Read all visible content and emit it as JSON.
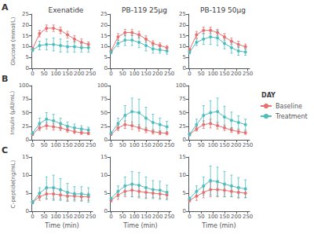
{
  "chart_data": [
    {
      "type": "line",
      "title": "Exenatide",
      "annotation": "A",
      "ylabel": "Glucose (mmol/L)",
      "x": [
        0,
        30,
        60,
        90,
        120,
        150,
        180,
        210,
        240
      ],
      "series": [
        {
          "name": "Baseline",
          "color": "#E87070",
          "marker": "circle",
          "values": [
            9.0,
            16.0,
            18.5,
            18.5,
            17.5,
            15.5,
            13.5,
            12.0,
            11.0
          ],
          "errors": [
            0.8,
            1.5,
            1.5,
            1.5,
            1.5,
            1.5,
            1.5,
            1.5,
            1.2
          ]
        },
        {
          "name": "Treatment",
          "color": "#4DBDBD",
          "marker": "circle",
          "values": [
            8.5,
            10.5,
            11.0,
            11.0,
            10.5,
            10.0,
            10.0,
            9.5,
            9.5
          ],
          "errors": [
            0.8,
            2.0,
            2.5,
            3.0,
            3.0,
            2.5,
            2.5,
            2.0,
            2.0
          ]
        }
      ],
      "xlim": [
        -5,
        258
      ],
      "xticks": [
        0,
        50,
        100,
        150,
        200,
        250
      ],
      "ylim": [
        0,
        25
      ],
      "yticks": [
        0,
        5,
        10,
        15,
        20,
        25
      ],
      "grid": false,
      "legend": "right",
      "legend_title": "DAY"
    },
    {
      "type": "line",
      "title": "PB-119 25μg",
      "x": [
        0,
        30,
        60,
        90,
        120,
        150,
        180,
        210,
        240
      ],
      "series": [
        {
          "name": "Baseline",
          "color": "#E87070",
          "marker": "circle",
          "values": [
            8.0,
            14.5,
            16.5,
            16.5,
            15.5,
            13.5,
            11.5,
            10.5,
            9.5
          ],
          "errors": [
            0.8,
            1.5,
            1.5,
            1.5,
            1.5,
            1.5,
            1.2,
            1.2,
            1.0
          ]
        },
        {
          "name": "Treatment",
          "color": "#4DBDBD",
          "marker": "circle",
          "values": [
            7.5,
            11.5,
            13.0,
            13.0,
            12.0,
            10.5,
            9.0,
            8.5,
            8.0
          ],
          "errors": [
            0.8,
            1.5,
            2.5,
            2.5,
            2.5,
            2.5,
            2.0,
            1.5,
            1.5
          ]
        }
      ],
      "xlim": [
        -5,
        258
      ],
      "xticks": [
        0,
        50,
        100,
        150,
        200,
        250
      ],
      "ylim": [
        0,
        25
      ],
      "yticks": [
        0,
        5,
        10,
        15,
        20,
        25
      ],
      "grid": false
    },
    {
      "type": "line",
      "title": "PB-119 50μg",
      "x": [
        0,
        30,
        60,
        90,
        120,
        150,
        180,
        210,
        240
      ],
      "series": [
        {
          "name": "Baseline",
          "color": "#E87070",
          "marker": "circle",
          "values": [
            8.5,
            15.5,
            17.5,
            17.5,
            16.5,
            14.5,
            12.5,
            11.0,
            10.0
          ],
          "errors": [
            0.8,
            1.5,
            1.5,
            1.5,
            1.5,
            1.5,
            1.5,
            1.5,
            1.2
          ]
        },
        {
          "name": "Treatment",
          "color": "#4DBDBD",
          "marker": "circle",
          "values": [
            7.5,
            12.0,
            13.5,
            14.5,
            14.0,
            11.5,
            9.5,
            8.0,
            7.5
          ],
          "errors": [
            0.8,
            1.5,
            2.5,
            3.5,
            3.5,
            2.5,
            2.5,
            2.0,
            1.5
          ]
        }
      ],
      "xlim": [
        -5,
        258
      ],
      "xticks": [
        0,
        50,
        100,
        150,
        200,
        250
      ],
      "ylim": [
        0,
        25
      ],
      "yticks": [
        0,
        5,
        10,
        15,
        20,
        25
      ],
      "grid": false
    },
    {
      "type": "line",
      "annotation": "B",
      "ylabel": "Insulin (μIU/mL)",
      "x": [
        0,
        30,
        60,
        90,
        120,
        150,
        180,
        210,
        240
      ],
      "series": [
        {
          "name": "Baseline",
          "color": "#E87070",
          "marker": "circle",
          "values": [
            10.0,
            22.0,
            26.0,
            24.0,
            22.0,
            18.0,
            15.0,
            13.0,
            12.0
          ],
          "errors": [
            2.0,
            5.0,
            6.0,
            6.0,
            5.0,
            4.0,
            3.5,
            3.0,
            2.5
          ]
        },
        {
          "name": "Treatment",
          "color": "#4DBDBD",
          "marker": "circle",
          "values": [
            12.0,
            30.0,
            38.0,
            35.0,
            30.0,
            25.0,
            22.0,
            20.0,
            18.0
          ],
          "errors": [
            3.0,
            10.0,
            12.0,
            12.0,
            10.0,
            8.0,
            7.0,
            6.0,
            5.0
          ]
        }
      ],
      "xlim": [
        -5,
        258
      ],
      "xticks": [
        0,
        50,
        100,
        150,
        200,
        250
      ],
      "ylim": [
        0,
        100
      ],
      "yticks": [
        0,
        25,
        50,
        75,
        100
      ],
      "grid": false
    },
    {
      "type": "line",
      "x": [
        0,
        30,
        60,
        90,
        120,
        150,
        180,
        210,
        240
      ],
      "series": [
        {
          "name": "Baseline",
          "color": "#E87070",
          "marker": "circle",
          "values": [
            10.0,
            22.0,
            28.0,
            26.0,
            22.0,
            18.0,
            15.0,
            13.0,
            12.0
          ],
          "errors": [
            2.0,
            5.0,
            7.0,
            7.0,
            6.0,
            5.0,
            4.0,
            3.5,
            3.0
          ]
        },
        {
          "name": "Treatment",
          "color": "#4DBDBD",
          "marker": "circle",
          "values": [
            12.0,
            30.0,
            45.0,
            52.0,
            50.0,
            40.0,
            32.0,
            28.0,
            24.0
          ],
          "errors": [
            3.0,
            10.0,
            18.0,
            25.0,
            25.0,
            20.0,
            15.0,
            12.0,
            10.0
          ]
        }
      ],
      "xlim": [
        -5,
        258
      ],
      "xticks": [
        0,
        50,
        100,
        150,
        200,
        250
      ],
      "ylim": [
        0,
        100
      ],
      "yticks": [
        0,
        25,
        50,
        75,
        100
      ],
      "grid": false
    },
    {
      "type": "line",
      "x": [
        0,
        30,
        60,
        90,
        120,
        150,
        180,
        210,
        240
      ],
      "series": [
        {
          "name": "Baseline",
          "color": "#E87070",
          "marker": "circle",
          "values": [
            10.0,
            20.0,
            28.0,
            30.0,
            26.0,
            22.0,
            18.0,
            15.0,
            13.0
          ],
          "errors": [
            2.0,
            4.0,
            7.0,
            8.0,
            6.0,
            5.0,
            4.5,
            4.0,
            3.0
          ]
        },
        {
          "name": "Treatment",
          "color": "#4DBDBD",
          "marker": "circle",
          "values": [
            10.0,
            28.0,
            45.0,
            50.0,
            52.0,
            42.0,
            36.0,
            32.0,
            28.0
          ],
          "errors": [
            3.0,
            10.0,
            18.0,
            22.0,
            25.0,
            20.0,
            15.0,
            12.0,
            10.0
          ]
        }
      ],
      "xlim": [
        -5,
        258
      ],
      "xticks": [
        0,
        50,
        100,
        150,
        200,
        250
      ],
      "ylim": [
        0,
        100
      ],
      "yticks": [
        0,
        25,
        50,
        75,
        100
      ],
      "grid": false
    },
    {
      "type": "line",
      "annotation": "C",
      "ylabel": "C-peptide(ng/mL)",
      "xlabel": "Time (min)",
      "x": [
        0,
        30,
        60,
        90,
        120,
        150,
        180,
        210,
        240
      ],
      "series": [
        {
          "name": "Baseline",
          "color": "#E87070",
          "marker": "circle",
          "values": [
            2.5,
            4.0,
            4.8,
            4.8,
            4.5,
            4.2,
            4.2,
            4.0,
            4.0
          ],
          "errors": [
            0.4,
            1.0,
            1.5,
            1.5,
            1.2,
            1.2,
            1.0,
            1.0,
            1.0
          ]
        },
        {
          "name": "Treatment",
          "color": "#4DBDBD",
          "marker": "circle",
          "values": [
            2.5,
            5.0,
            6.5,
            6.5,
            6.0,
            5.2,
            4.8,
            4.8,
            4.5
          ],
          "errors": [
            0.4,
            1.5,
            3.0,
            3.5,
            3.0,
            2.5,
            2.0,
            2.0,
            2.0
          ]
        }
      ],
      "xlim": [
        -5,
        258
      ],
      "xticks": [
        0,
        50,
        100,
        150,
        200,
        250
      ],
      "ylim": [
        0,
        15
      ],
      "yticks": [
        0,
        5,
        10,
        15
      ],
      "grid": false
    },
    {
      "type": "line",
      "xlabel": "Time (min)",
      "x": [
        0,
        30,
        60,
        90,
        120,
        150,
        180,
        210,
        240
      ],
      "series": [
        {
          "name": "Baseline",
          "color": "#E87070",
          "marker": "circle",
          "values": [
            3.0,
            4.5,
            5.5,
            5.8,
            5.5,
            5.2,
            5.0,
            4.8,
            4.5
          ],
          "errors": [
            0.4,
            1.2,
            1.5,
            1.8,
            1.5,
            1.5,
            1.2,
            1.2,
            1.0
          ]
        },
        {
          "name": "Treatment",
          "color": "#4DBDBD",
          "marker": "circle",
          "values": [
            3.5,
            5.5,
            7.0,
            7.5,
            7.2,
            6.5,
            6.0,
            5.8,
            5.2
          ],
          "errors": [
            0.4,
            1.5,
            2.5,
            3.5,
            3.5,
            3.0,
            2.5,
            2.5,
            2.0
          ]
        }
      ],
      "xlim": [
        -5,
        258
      ],
      "xticks": [
        0,
        50,
        100,
        150,
        200,
        250
      ],
      "ylim": [
        0,
        15
      ],
      "yticks": [
        0,
        5,
        10,
        15
      ],
      "grid": false
    },
    {
      "type": "line",
      "xlabel": "Time (min)",
      "x": [
        0,
        30,
        60,
        90,
        120,
        150,
        180,
        210,
        240
      ],
      "series": [
        {
          "name": "Baseline",
          "color": "#E87070",
          "marker": "circle",
          "values": [
            3.0,
            4.2,
            5.2,
            6.0,
            6.0,
            5.8,
            5.5,
            5.2,
            5.0
          ],
          "errors": [
            0.4,
            1.2,
            1.5,
            2.0,
            2.0,
            1.8,
            1.5,
            1.5,
            1.2
          ]
        },
        {
          "name": "Treatment",
          "color": "#4DBDBD",
          "marker": "circle",
          "values": [
            3.5,
            5.5,
            7.0,
            8.5,
            8.2,
            7.5,
            7.0,
            6.5,
            6.2
          ],
          "errors": [
            0.4,
            1.5,
            2.5,
            4.0,
            4.0,
            3.5,
            3.0,
            2.8,
            2.5
          ]
        }
      ],
      "xlim": [
        -5,
        258
      ],
      "xticks": [
        0,
        50,
        100,
        150,
        200,
        250
      ],
      "ylim": [
        0,
        15
      ],
      "yticks": [
        0,
        5,
        10,
        15
      ],
      "grid": false
    }
  ]
}
